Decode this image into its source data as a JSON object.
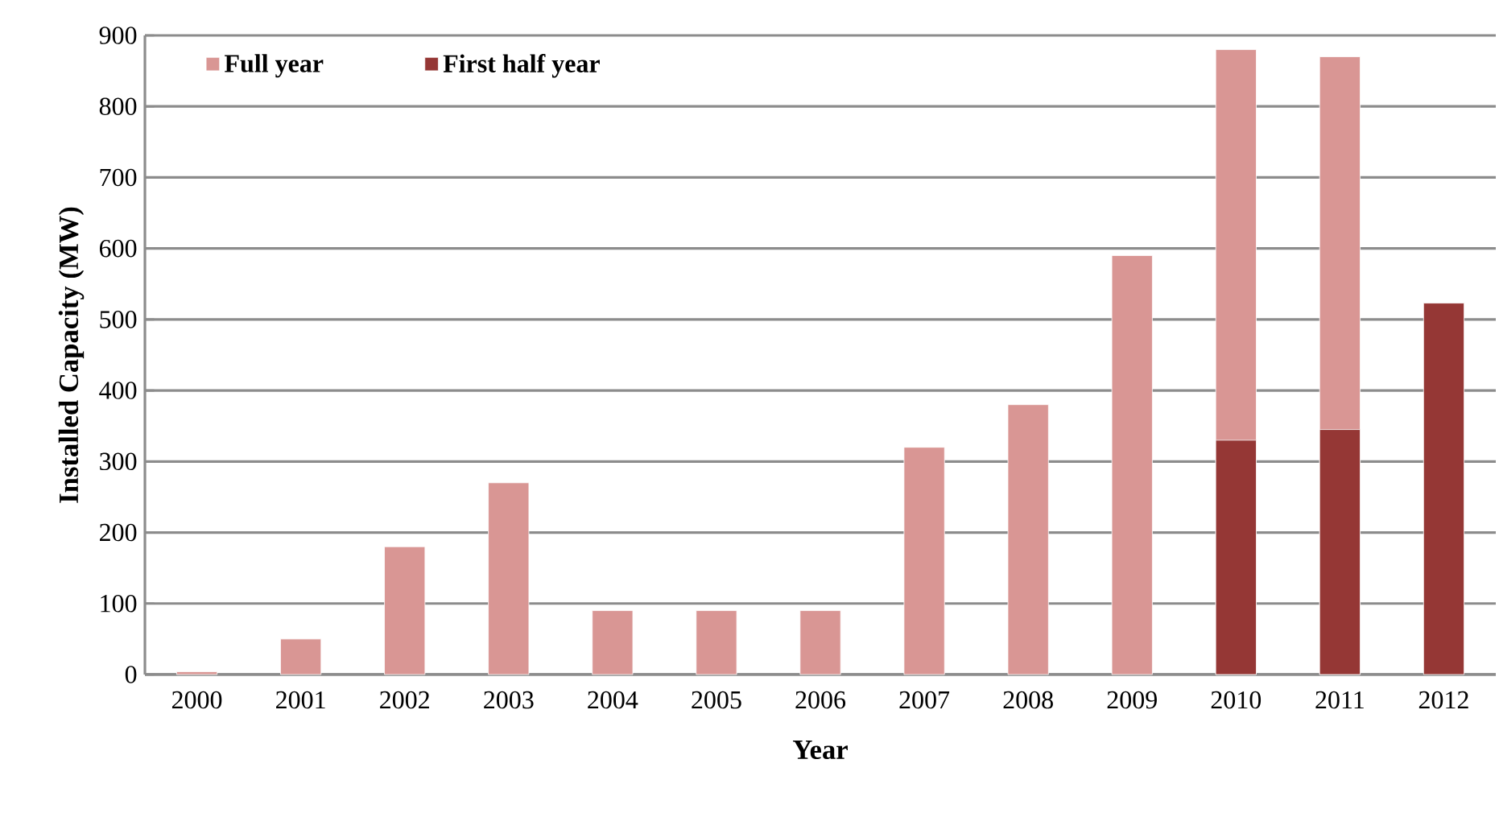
{
  "chart_data": {
    "type": "bar",
    "xlabel": "Year",
    "ylabel": "Installed Capacity (MW)",
    "categories": [
      "2000",
      "2001",
      "2002",
      "2003",
      "2004",
      "2005",
      "2006",
      "2007",
      "2008",
      "2009",
      "2010",
      "2011",
      "2012"
    ],
    "series": [
      {
        "name": "Full year",
        "color": "#d99694",
        "values": [
          4,
          50,
          180,
          270,
          90,
          90,
          90,
          320,
          380,
          590,
          880,
          870,
          null
        ]
      },
      {
        "name": "First half year",
        "color": "#953735",
        "values": [
          null,
          null,
          null,
          null,
          null,
          null,
          null,
          null,
          null,
          null,
          330,
          345,
          523
        ]
      }
    ],
    "ylim": [
      0,
      900
    ],
    "yticks": [
      0,
      100,
      200,
      300,
      400,
      500,
      600,
      700,
      800,
      900
    ],
    "grid": "y",
    "legend": "top left"
  }
}
